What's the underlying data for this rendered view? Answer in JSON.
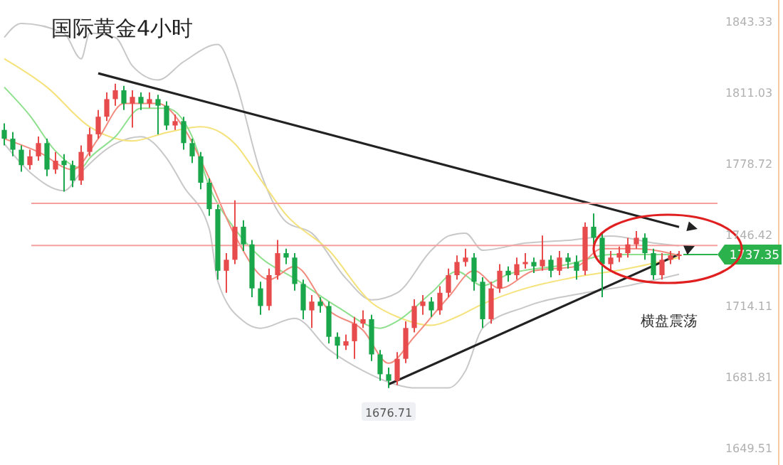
{
  "chart_data": {
    "type": "candlestick",
    "title": "国际黄金4小时",
    "categories": [
      null,
      null,
      null,
      null,
      null,
      null,
      null,
      null,
      null,
      null,
      null,
      null,
      null,
      null,
      null,
      null,
      null,
      null,
      null,
      null,
      null,
      null,
      null,
      null,
      null,
      null,
      null,
      null,
      null,
      null,
      null,
      null,
      null,
      null,
      null,
      null,
      null,
      null,
      null,
      null,
      null,
      null,
      null,
      null,
      null,
      null,
      null,
      null,
      null,
      null,
      null,
      null,
      null,
      null,
      null,
      null,
      null,
      null,
      null,
      null,
      null,
      null,
      null,
      null,
      null,
      null,
      null,
      null,
      null,
      null,
      null,
      null,
      null,
      null,
      null,
      null,
      null,
      null,
      null,
      null
    ],
    "ohlc": [
      [
        1794,
        1797,
        1787,
        1790
      ],
      [
        1790,
        1793,
        1782,
        1785
      ],
      [
        1785,
        1787,
        1775,
        1778
      ],
      [
        1778,
        1785,
        1776,
        1782
      ],
      [
        1782,
        1791,
        1780,
        1788
      ],
      [
        1788,
        1790,
        1773,
        1776
      ],
      [
        1776,
        1784,
        1774,
        1780
      ],
      [
        1780,
        1783,
        1766,
        1778
      ],
      [
        1778,
        1780,
        1768,
        1771
      ],
      [
        1771,
        1787,
        1769,
        1784
      ],
      [
        1784,
        1795,
        1782,
        1792
      ],
      [
        1792,
        1803,
        1790,
        1800
      ],
      [
        1800,
        1811,
        1798,
        1808
      ],
      [
        1808,
        1815,
        1805,
        1812
      ],
      [
        1812,
        1814,
        1803,
        1806
      ],
      [
        1806,
        1812,
        1795,
        1809
      ],
      [
        1809,
        1811,
        1803,
        1806
      ],
      [
        1806,
        1811,
        1804,
        1808
      ],
      [
        1808,
        1810,
        1792,
        1805
      ],
      [
        1805,
        1807,
        1794,
        1796
      ],
      [
        1796,
        1801,
        1794,
        1798
      ],
      [
        1798,
        1800,
        1785,
        1788
      ],
      [
        1788,
        1790,
        1779,
        1782
      ],
      [
        1782,
        1784,
        1767,
        1770
      ],
      [
        1770,
        1772,
        1755,
        1758
      ],
      [
        1758,
        1760,
        1726,
        1730
      ],
      [
        1730,
        1738,
        1720,
        1735
      ],
      [
        1735,
        1762,
        1733,
        1750
      ],
      [
        1750,
        1753,
        1739,
        1742
      ],
      [
        1742,
        1744,
        1718,
        1722
      ],
      [
        1722,
        1725,
        1710,
        1714
      ],
      [
        1714,
        1731,
        1712,
        1728
      ],
      [
        1728,
        1744,
        1726,
        1738
      ],
      [
        1738,
        1740,
        1733,
        1736
      ],
      [
        1736,
        1738,
        1721,
        1724
      ],
      [
        1724,
        1726,
        1708,
        1712
      ],
      [
        1712,
        1719,
        1704,
        1716
      ],
      [
        1716,
        1718,
        1711,
        1714
      ],
      [
        1714,
        1716,
        1697,
        1700
      ],
      [
        1700,
        1702,
        1690,
        1696
      ],
      [
        1696,
        1701,
        1694,
        1698
      ],
      [
        1698,
        1709,
        1690,
        1706
      ],
      [
        1706,
        1712,
        1704,
        1708
      ],
      [
        1708,
        1710,
        1689,
        1692
      ],
      [
        1692,
        1694,
        1680,
        1683
      ],
      [
        1683,
        1686,
        1676.71,
        1680
      ],
      [
        1680,
        1693,
        1678,
        1690
      ],
      [
        1690,
        1707,
        1688,
        1704
      ],
      [
        1704,
        1717,
        1702,
        1714
      ],
      [
        1714,
        1719,
        1710,
        1716
      ],
      [
        1716,
        1718,
        1709,
        1712
      ],
      [
        1712,
        1723,
        1710,
        1720
      ],
      [
        1720,
        1731,
        1718,
        1728
      ],
      [
        1728,
        1737,
        1726,
        1734
      ],
      [
        1734,
        1740,
        1732,
        1736
      ],
      [
        1736,
        1738,
        1721,
        1725
      ],
      [
        1725,
        1727,
        1704,
        1708
      ],
      [
        1708,
        1725,
        1706,
        1722
      ],
      [
        1722,
        1733,
        1720,
        1730
      ],
      [
        1730,
        1732,
        1725,
        1728
      ],
      [
        1728,
        1736,
        1726,
        1733
      ],
      [
        1733,
        1738,
        1731,
        1734
      ],
      [
        1734,
        1736,
        1729,
        1732
      ],
      [
        1732,
        1746,
        1730,
        1735
      ],
      [
        1735,
        1737,
        1727,
        1730
      ],
      [
        1730,
        1739,
        1728,
        1736
      ],
      [
        1736,
        1738,
        1731,
        1734
      ],
      [
        1734,
        1737,
        1726,
        1730
      ],
      [
        1730,
        1752,
        1728,
        1750
      ],
      [
        1750,
        1756,
        1742,
        1745
      ],
      [
        1745,
        1747,
        1718,
        1733
      ],
      [
        1733,
        1739,
        1730,
        1736
      ],
      [
        1736,
        1741,
        1734,
        1738
      ],
      [
        1738,
        1745,
        1736,
        1742
      ],
      [
        1742,
        1748,
        1740,
        1745
      ],
      [
        1745,
        1747,
        1735,
        1738
      ],
      [
        1738,
        1740,
        1726,
        1728
      ],
      [
        1728,
        1738,
        1726,
        1735
      ],
      [
        1735,
        1739,
        1733,
        1737
      ],
      [
        1737,
        1739,
        1735,
        1737.35
      ]
    ],
    "colors": [
      "#1aa64a",
      "#1aa64a",
      "#1aa64a",
      "#e84b4b",
      "#e84b4b",
      "#1aa64a",
      "#e84b4b",
      "#1aa64a",
      "#1aa64a",
      "#e84b4b",
      "#e84b4b",
      "#e84b4b",
      "#e84b4b",
      "#e84b4b",
      "#1aa64a",
      "#e84b4b",
      "#1aa64a",
      "#e84b4b",
      "#1aa64a",
      "#1aa64a",
      "#e84b4b",
      "#1aa64a",
      "#1aa64a",
      "#1aa64a",
      "#1aa64a",
      "#1aa64a",
      "#e84b4b",
      "#e84b4b",
      "#1aa64a",
      "#1aa64a",
      "#1aa64a",
      "#e84b4b",
      "#e84b4b",
      "#1aa64a",
      "#1aa64a",
      "#1aa64a",
      "#e84b4b",
      "#1aa64a",
      "#1aa64a",
      "#1aa64a",
      "#e84b4b",
      "#e84b4b",
      "#e84b4b",
      "#1aa64a",
      "#1aa64a",
      "#1aa64a",
      "#e84b4b",
      "#e84b4b",
      "#e84b4b",
      "#e84b4b",
      "#1aa64a",
      "#e84b4b",
      "#e84b4b",
      "#e84b4b",
      "#e84b4b",
      "#1aa64a",
      "#1aa64a",
      "#e84b4b",
      "#e84b4b",
      "#1aa64a",
      "#e84b4b",
      "#e84b4b",
      "#1aa64a",
      "#e84b4b",
      "#1aa64a",
      "#e84b4b",
      "#1aa64a",
      "#1aa64a",
      "#e84b4b",
      "#1aa64a",
      "#1aa64a",
      "#e84b4b",
      "#e84b4b",
      "#e84b4b",
      "#e84b4b",
      "#1aa64a",
      "#1aa64a",
      "#e84b4b",
      "#e84b4b",
      "#e84b4b"
    ],
    "series": [
      {
        "type": "line",
        "color": "#c8c8c8",
        "values": [
          1836.0,
          null,
          1842.4,
          null,
          null,
          null,
          null,
          1837.9,
          null,
          1826.3,
          1837.9,
          null,
          null,
          1836.0,
          null,
          1823.1,
          null,
          null,
          1816.7,
          null,
          null,
          1825.0,
          null,
          null,
          null,
          1832.8,
          null,
          1816.7,
          null,
          null,
          1774.8,
          null,
          null,
          1752.2,
          null,
          null,
          1747.1,
          null,
          null,
          null,
          1726.5,
          null,
          null,
          1716.8,
          null,
          null,
          1720.0,
          null,
          null,
          null,
          1739.3,
          null,
          1745.8,
          null,
          1747.1,
          null,
          1739.3,
          null,
          null,
          null,
          null,
          1742.6,
          null,
          null,
          null,
          null,
          1743.8,
          null,
          null,
          null,
          null,
          1745.8,
          null,
          null,
          null,
          null,
          1742.6,
          null,
          null,
          1741.3
        ]
      },
      {
        "type": "line",
        "color": "#c8c8c8",
        "values": [
          1787.7,
          null,
          null,
          1774.8,
          null,
          null,
          null,
          1766.4,
          null,
          1774.8,
          null,
          null,
          null,
          1787.7,
          null,
          null,
          1790.9,
          null,
          null,
          1781.2,
          null,
          1768.3,
          null,
          null,
          1749.0,
          1725.2,
          null,
          null,
          1707.1,
          null,
          1703.9,
          null,
          null,
          null,
          1708.4,
          null,
          null,
          null,
          1694.2,
          null,
          null,
          null,
          1684.6,
          null,
          null,
          1679.4,
          null,
          null,
          1676.8,
          null,
          null,
          null,
          1676.8,
          null,
          1684.6,
          null,
          1703.9,
          null,
          null,
          null,
          null,
          1713.6,
          null,
          null,
          null,
          null,
          null,
          null,
          1720.0,
          null,
          null,
          null,
          null,
          1723.2,
          null,
          null,
          null,
          null,
          null,
          1728.4
        ]
      },
      {
        "type": "line",
        "color": "#f5e27a",
        "values": [
          1826.3,
          null,
          null,
          null,
          null,
          1813.4,
          null,
          null,
          null,
          null,
          1795.4,
          null,
          null,
          null,
          null,
          1789.0,
          null,
          null,
          null,
          1792.8,
          null,
          null,
          null,
          1795.4,
          null,
          null,
          null,
          1787.7,
          null,
          null,
          1771.5,
          null,
          null,
          1755.4,
          null,
          null,
          null,
          null,
          1739.3,
          null,
          null,
          null,
          null,
          1715.5,
          null,
          null,
          1709.1,
          null,
          null,
          null,
          1705.2,
          null,
          null,
          1709.1,
          null,
          null,
          1714.9,
          null,
          null,
          null,
          null,
          1722.0,
          null,
          null,
          null,
          null,
          1726.5,
          null,
          null,
          null,
          null,
          null,
          null,
          1731.0,
          null,
          null,
          null,
          null,
          null,
          1736.1
        ]
      },
      {
        "type": "line",
        "color": "#8ee08e",
        "values": [
          1813.4,
          null,
          null,
          1800.5,
          null,
          null,
          1784.4,
          null,
          null,
          1776.7,
          1781.2,
          null,
          null,
          1790.9,
          null,
          null,
          1803.8,
          null,
          null,
          1803.8,
          null,
          null,
          1790.9,
          null,
          1768.3,
          null,
          null,
          1749.0,
          null,
          null,
          1736.1,
          null,
          null,
          null,
          1726.5,
          null,
          null,
          null,
          null,
          1713.6,
          null,
          null,
          null,
          null,
          1703.9,
          null,
          1707.1,
          null,
          null,
          null,
          1720.0,
          null,
          null,
          1729.7,
          null,
          null,
          1723.2,
          null,
          null,
          1728.4,
          null,
          null,
          null,
          null,
          null,
          null,
          1732.9,
          null,
          null,
          null,
          null,
          1737.4,
          null,
          null,
          null,
          null,
          null,
          null,
          null,
          1737.4
        ]
      },
      {
        "type": "line",
        "color": "#222222",
        "values": [
          null,
          null,
          null,
          null,
          null,
          null,
          null,
          null,
          null,
          null,
          null,
          1819.7,
          null,
          null,
          null,
          null,
          null,
          null,
          null,
          null,
          null,
          null,
          null,
          null,
          null,
          null,
          null,
          null,
          null,
          null,
          null,
          null,
          null,
          null,
          null,
          null,
          null,
          null,
          null,
          null,
          null,
          null,
          null,
          null,
          null,
          null,
          null,
          null,
          null,
          null,
          null,
          null,
          null,
          null,
          null,
          null,
          null,
          null,
          null,
          null,
          null,
          null,
          null,
          null,
          null,
          null,
          null,
          null,
          null,
          null,
          null,
          null,
          null,
          null,
          null,
          null,
          null,
          null,
          null,
          1749.9
        ]
      },
      {
        "type": "line",
        "color": "#222222",
        "values": [
          null,
          null,
          null,
          null,
          null,
          null,
          null,
          null,
          null,
          null,
          null,
          null,
          null,
          null,
          null,
          null,
          null,
          null,
          null,
          null,
          null,
          null,
          null,
          null,
          null,
          null,
          null,
          null,
          null,
          null,
          null,
          null,
          null,
          null,
          null,
          null,
          null,
          null,
          null,
          null,
          null,
          null,
          null,
          null,
          null,
          1678.4,
          null,
          null,
          null,
          null,
          null,
          null,
          null,
          null,
          null,
          null,
          null,
          null,
          null,
          null,
          null,
          null,
          null,
          null,
          null,
          null,
          null,
          null,
          null,
          null,
          null,
          null,
          null,
          null,
          null,
          null,
          null,
          null,
          null,
          1737.5
        ]
      },
      {
        "type": "line",
        "color": "#f28b7e",
        "values": [
          1790,
          null,
          null,
          null,
          1784,
          null,
          null,
          null,
          1776,
          null,
          null,
          1790,
          null,
          null,
          1806,
          null,
          null,
          null,
          1806,
          null,
          null,
          1795,
          null,
          null,
          1772,
          null,
          null,
          1746,
          null,
          null,
          null,
          1726,
          null,
          null,
          1732,
          null,
          null,
          null,
          1712,
          null,
          null,
          null,
          1703,
          null,
          null,
          1688,
          null,
          null,
          1700,
          null,
          null,
          null,
          1718,
          null,
          null,
          1730,
          null,
          null,
          1722,
          null,
          null,
          null,
          1730,
          null,
          null,
          null,
          null,
          1732,
          null,
          null,
          1740,
          null,
          null,
          null,
          1740,
          null,
          null,
          null,
          null,
          1737
        ]
      }
    ],
    "ylim": [
      1649.51,
      1843.33
    ],
    "yticks": [
      1843.33,
      1811.03,
      1778.72,
      1746.42,
      1714.11,
      1681.81,
      1649.51
    ],
    "ref_lines": [
      {
        "axis": "y",
        "value": 1760.6,
        "color": "#f4a0a0"
      },
      {
        "axis": "y",
        "value": 1741.5,
        "color": "#f4a0a0"
      },
      {
        "axis": "y",
        "value": 1737.35,
        "label": "1737.35",
        "color": "#2bb24c"
      }
    ],
    "annotations": [
      {
        "text": "1676.71",
        "y": 1676.71
      },
      "横盘震荡"
    ],
    "grid": false
  }
}
